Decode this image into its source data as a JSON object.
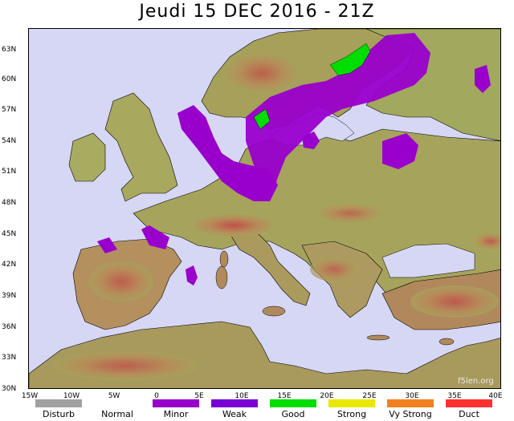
{
  "title": "Jeudi 15 DEC 2016 - 21Z",
  "latitude_labels": [
    "63N",
    "60N",
    "57N",
    "54N",
    "51N",
    "48N",
    "45N",
    "42N",
    "39N",
    "36N",
    "33N",
    "30N"
  ],
  "longitude_labels": [
    "15W",
    "10W",
    "5W",
    "0",
    "5E",
    "10E",
    "15E",
    "20E",
    "25E",
    "30E",
    "35E",
    "40E"
  ],
  "watermark": "f5len.org",
  "legend": [
    {
      "label": "Disturb",
      "color": "#a0a0a0"
    },
    {
      "label": "Normal",
      "color": "#ffffff"
    },
    {
      "label": "Minor",
      "color": "#9900cc"
    },
    {
      "label": "Weak",
      "color": "#7a00d6"
    },
    {
      "label": "Good",
      "color": "#00dd00"
    },
    {
      "label": "Strong",
      "color": "#e8e800"
    },
    {
      "label": "Vy Strong",
      "color": "#f08020"
    },
    {
      "label": "Duct",
      "color": "#ff3030"
    }
  ],
  "colors": {
    "sea": "#d6d6f5",
    "land_low": "#9aa85c",
    "land_mid": "#b89a60",
    "land_high": "#c0504a",
    "minor": "#9900cc",
    "good": "#00dd00",
    "border": "#000000"
  }
}
